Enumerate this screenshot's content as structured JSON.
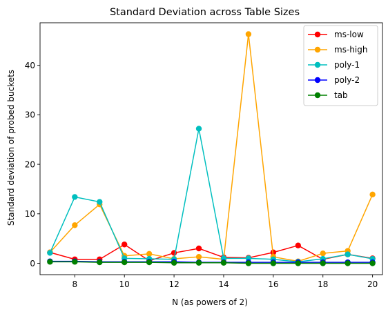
{
  "chart_data": {
    "type": "line",
    "title": "Standard Deviation across Table Sizes",
    "xlabel": "N (as powers of 2)",
    "ylabel": "Standard deviation of probed buckets",
    "x": [
      7,
      8,
      9,
      10,
      11,
      12,
      13,
      14,
      15,
      16,
      17,
      18,
      19,
      20
    ],
    "xlim": [
      6.6,
      20.4
    ],
    "ylim": [
      -2.3,
      48.6
    ],
    "xticks": [
      8,
      10,
      12,
      14,
      16,
      18,
      20
    ],
    "yticks": [
      0,
      10,
      20,
      30,
      40
    ],
    "grid": false,
    "legend_position": "top-right",
    "series": [
      {
        "name": "ms-low",
        "color": "#ff0000",
        "values": [
          2.2,
          0.8,
          0.8,
          3.8,
          0.5,
          2.1,
          3.0,
          1.2,
          1.1,
          2.2,
          3.6,
          0.8,
          1.8,
          1.0
        ]
      },
      {
        "name": "ms-high",
        "color": "#ffa500",
        "values": [
          2.2,
          7.7,
          11.9,
          1.5,
          1.9,
          0.9,
          1.3,
          0.8,
          46.3,
          1.3,
          0.4,
          2.0,
          2.5,
          13.9
        ]
      },
      {
        "name": "poly-1",
        "color": "#00bfbf",
        "values": [
          2.1,
          13.4,
          12.4,
          1.0,
          0.9,
          0.8,
          27.2,
          1.0,
          1.0,
          0.8,
          0.3,
          0.9,
          1.8,
          0.9
        ]
      },
      {
        "name": "poly-2",
        "color": "#0000ff",
        "values": [
          0.4,
          0.4,
          0.3,
          0.3,
          0.3,
          0.3,
          0.2,
          0.2,
          0.2,
          0.2,
          0.2,
          0.2,
          0.2,
          0.2
        ]
      },
      {
        "name": "tab",
        "color": "#008000",
        "values": [
          0.3,
          0.3,
          0.2,
          0.2,
          0.2,
          0.1,
          0.1,
          0.1,
          0.0,
          0.0,
          0.0,
          0.0,
          0.0,
          0.0
        ]
      }
    ]
  }
}
